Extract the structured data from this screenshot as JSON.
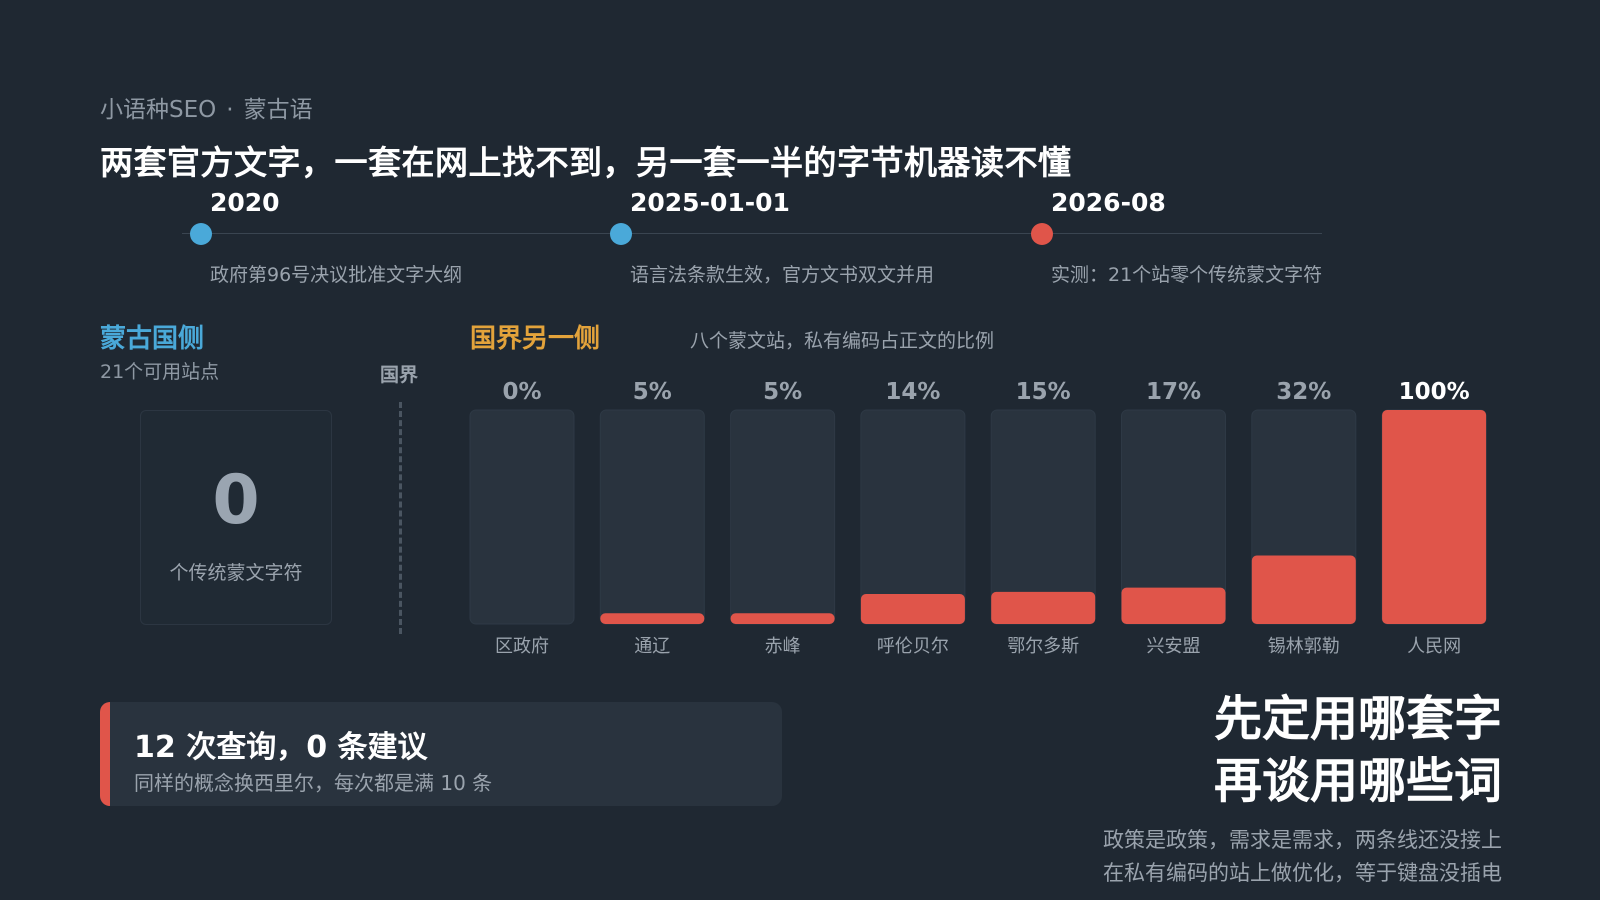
{
  "header": {
    "eyebrow_left": "小语种SEO",
    "eyebrow_sep": "·",
    "eyebrow_right": "蒙古语",
    "headline": "两套官方文字，一套在网上找不到，另一套一半的字节机器读不懂"
  },
  "timeline": [
    {
      "date": "2020",
      "desc": "政府第96号决议批准文字大纲",
      "color": "#4aa9d9"
    },
    {
      "date": "2025-01-01",
      "desc": "语言法条款生效，官方文书双文并用",
      "color": "#4aa9d9"
    },
    {
      "date": "2026-08",
      "desc": "实测：21个站零个传统蒙文字符",
      "color": "#e0554a"
    }
  ],
  "left_panel": {
    "title": "蒙古国侧",
    "subtitle": "21个可用站点",
    "big_number": "0",
    "big_caption": "个传统蒙文字符"
  },
  "border_label": "国界",
  "right_panel": {
    "title": "国界另一侧",
    "subtitle": "八个蒙文站，私有编码占正文的比例"
  },
  "chart_data": {
    "type": "bar",
    "categories": [
      "区政府",
      "通辽",
      "赤峰",
      "呼伦贝尔",
      "鄂尔多斯",
      "兴安盟",
      "锡林郭勒",
      "人民网"
    ],
    "values": [
      0,
      5,
      5,
      14,
      15,
      17,
      32,
      100
    ],
    "value_labels": [
      "0%",
      "5%",
      "5%",
      "14%",
      "15%",
      "17%",
      "32%",
      "100%"
    ],
    "ylim": [
      0,
      100
    ],
    "unit": "%",
    "bar_color": "#e0554a",
    "track_color": "#29333e"
  },
  "callout": {
    "title": "12 次查询，0 条建议",
    "subtitle": "同样的概念换西里尔，每次都是满 10 条"
  },
  "conclusion": {
    "line1": "先定用哪套字",
    "line2": "再谈用哪些词",
    "note1": "政策是政策，需求是需求，两条线还没接上",
    "note2": "在私有编码的站上做优化，等于键盘没插电"
  }
}
